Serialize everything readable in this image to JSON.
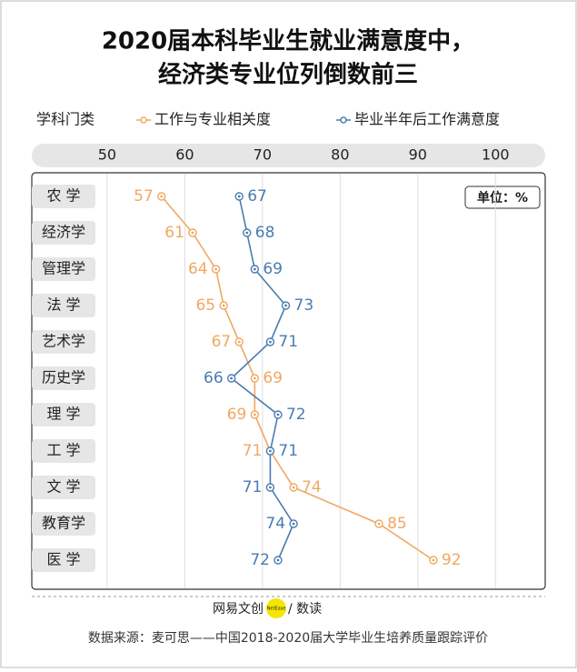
{
  "chart_data": {
    "type": "line",
    "title": "2020届本科毕业生就业满意度中，",
    "subtitle": "经济类专业位列倒数前三",
    "category_label": "学科门类",
    "unit": "单位：%",
    "categories": [
      "农 学",
      "经济学",
      "管理学",
      "法 学",
      "艺术学",
      "历史学",
      "理 学",
      "工 学",
      "文 学",
      "教育学",
      "医 学"
    ],
    "series": [
      {
        "name": "工作与专业相关度",
        "color": "#f0a860",
        "values": [
          57,
          61,
          64,
          65,
          67,
          69,
          69,
          71,
          74,
          85,
          92
        ]
      },
      {
        "name": "毕业半年后工作满意度",
        "color": "#4a7cb0",
        "values": [
          67,
          68,
          69,
          73,
          71,
          66,
          72,
          71,
          71,
          74,
          72
        ]
      }
    ],
    "xlim": [
      40.3,
      106.4
    ],
    "xticks": [
      50,
      60,
      70,
      80,
      90,
      100
    ],
    "grid": true,
    "brand": "网易文创",
    "brand_badge": "NetEase",
    "brand_sub": "/ 数读",
    "source": "数据来源：麦可思——中国2018-2020届大学毕业生培养质量跟踪评价"
  }
}
